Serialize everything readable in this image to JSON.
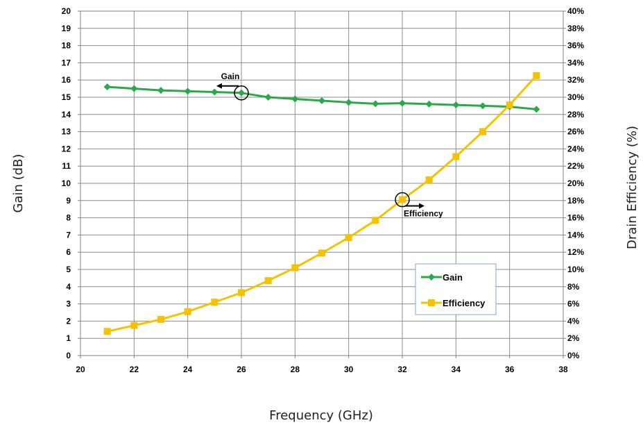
{
  "chart_data": {
    "type": "line",
    "xlabel": "Frequency (GHz)",
    "ylabel": "Gain (dB)",
    "y2label": "Drain Efficiency (%)",
    "xlim": [
      20,
      38
    ],
    "ylim": [
      0,
      20
    ],
    "y2lim": [
      0,
      40
    ],
    "x_ticks": [
      "20",
      "22",
      "24",
      "26",
      "28",
      "30",
      "32",
      "34",
      "36",
      "38"
    ],
    "y_ticks": [
      "0",
      "1",
      "2",
      "3",
      "4",
      "5",
      "6",
      "7",
      "8",
      "9",
      "10",
      "11",
      "12",
      "13",
      "14",
      "15",
      "16",
      "17",
      "18",
      "19",
      "20"
    ],
    "y2_ticks": [
      "0%",
      "2%",
      "4%",
      "6%",
      "8%",
      "10%",
      "12%",
      "14%",
      "16%",
      "18%",
      "20%",
      "22%",
      "24%",
      "26%",
      "28%",
      "30%",
      "32%",
      "34%",
      "36%",
      "38%",
      "40%"
    ],
    "grid": true,
    "legend_position": "lower-right",
    "series": [
      {
        "name": "Gain",
        "axis": "left",
        "color": "#2aa84a",
        "marker": "diamond",
        "x": [
          21,
          22,
          23,
          24,
          25,
          26,
          27,
          28,
          29,
          30,
          31,
          32,
          33,
          34,
          35,
          36,
          37
        ],
        "values": [
          15.6,
          15.5,
          15.4,
          15.35,
          15.3,
          15.25,
          15.0,
          14.9,
          14.8,
          14.7,
          14.62,
          14.65,
          14.6,
          14.55,
          14.5,
          14.45,
          14.3
        ]
      },
      {
        "name": "Efficiency",
        "axis": "right",
        "color": "#f5c200",
        "marker": "square",
        "x": [
          21,
          22,
          23,
          24,
          25,
          26,
          27,
          28,
          29,
          30,
          31,
          32,
          33,
          34,
          35,
          36,
          37
        ],
        "values": [
          2.8,
          3.5,
          4.2,
          5.1,
          6.2,
          7.3,
          8.7,
          10.2,
          11.9,
          13.7,
          15.7,
          18.1,
          20.4,
          23.1,
          26.0,
          29.1,
          32.5
        ]
      }
    ],
    "annotations": [
      {
        "text": "Gain",
        "at_x": 26,
        "at_y": 15.25,
        "axis": "left",
        "arrow": "left"
      },
      {
        "text": "Efficiency",
        "at_x": 32,
        "at_y": 18.1,
        "axis": "right",
        "arrow": "right"
      }
    ]
  }
}
